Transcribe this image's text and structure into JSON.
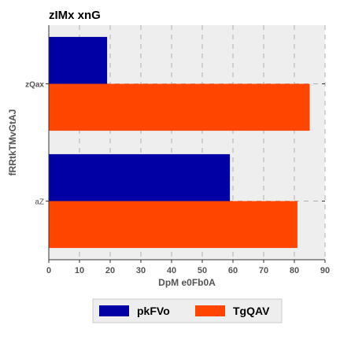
{
  "chart_data": {
    "type": "bar",
    "orientation": "horizontal",
    "title": "zIMx xnG",
    "xlabel": "DpM e0Fb0A",
    "ylabel": "fRRtkTMvGtAJ",
    "categories": [
      "aZ",
      "zQax"
    ],
    "series": [
      {
        "name": "pkFVo",
        "color": "#0000a4",
        "values": [
          59,
          19
        ]
      },
      {
        "name": "TgQAV",
        "color": "#ff4500",
        "values": [
          81,
          85
        ]
      }
    ],
    "xlim": [
      0,
      90
    ],
    "xticks": [
      0,
      10,
      20,
      30,
      40,
      50,
      60,
      70,
      80,
      90
    ],
    "grid": true,
    "legend_position": "bottom-center",
    "background_color": "#eeeeee"
  }
}
